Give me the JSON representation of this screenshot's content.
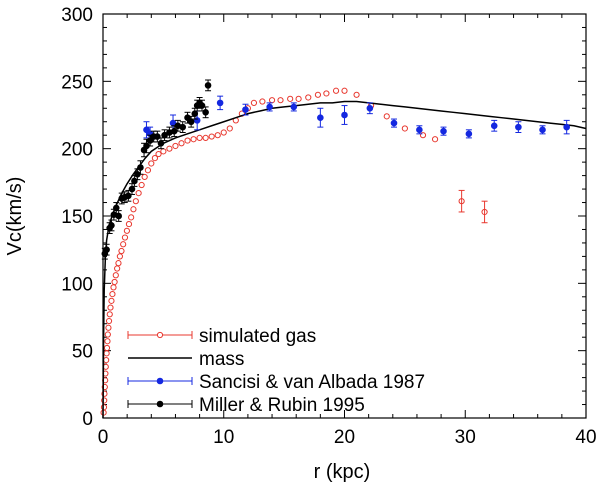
{
  "chart_data": {
    "type": "scatter",
    "xlabel": "r (kpc)",
    "ylabel": "Vc(km/s)",
    "xlim": [
      0,
      40
    ],
    "ylim": [
      0,
      300
    ],
    "xticks": [
      0,
      10,
      20,
      30,
      40
    ],
    "yticks": [
      0,
      50,
      100,
      150,
      200,
      250,
      300
    ],
    "grid": false,
    "legend_position": "bottom-left",
    "colors": {
      "simulated_gas": "#e8382f",
      "mass": "#000000",
      "sancisi": "#1428e0",
      "miller": "#000000"
    },
    "series": [
      {
        "name": "simulated gas",
        "style": "open-circle-errorbar",
        "points": [
          {
            "x": 0.05,
            "y": 4
          },
          {
            "x": 0.08,
            "y": 8
          },
          {
            "x": 0.1,
            "y": 13
          },
          {
            "x": 0.12,
            "y": 18
          },
          {
            "x": 0.15,
            "y": 23
          },
          {
            "x": 0.18,
            "y": 28
          },
          {
            "x": 0.2,
            "y": 33
          },
          {
            "x": 0.23,
            "y": 38
          },
          {
            "x": 0.26,
            "y": 43
          },
          {
            "x": 0.3,
            "y": 48
          },
          {
            "x": 0.33,
            "y": 52
          },
          {
            "x": 0.37,
            "y": 57
          },
          {
            "x": 0.4,
            "y": 62
          },
          {
            "x": 0.45,
            "y": 67
          },
          {
            "x": 0.5,
            "y": 72
          },
          {
            "x": 0.56,
            "y": 77
          },
          {
            "x": 0.62,
            "y": 82
          },
          {
            "x": 0.7,
            "y": 87
          },
          {
            "x": 0.78,
            "y": 92
          },
          {
            "x": 0.87,
            "y": 97
          },
          {
            "x": 0.96,
            "y": 101
          },
          {
            "x": 1.06,
            "y": 106
          },
          {
            "x": 1.17,
            "y": 111
          },
          {
            "x": 1.28,
            "y": 115
          },
          {
            "x": 1.4,
            "y": 120
          },
          {
            "x": 1.53,
            "y": 124
          },
          {
            "x": 1.67,
            "y": 129
          },
          {
            "x": 1.82,
            "y": 134
          },
          {
            "x": 1.98,
            "y": 139
          },
          {
            "x": 2.15,
            "y": 144
          },
          {
            "x": 2.33,
            "y": 149
          },
          {
            "x": 2.52,
            "y": 155
          },
          {
            "x": 2.72,
            "y": 161
          },
          {
            "x": 2.95,
            "y": 167
          },
          {
            "x": 3.2,
            "y": 173
          },
          {
            "x": 3.45,
            "y": 179
          },
          {
            "x": 3.72,
            "y": 184
          },
          {
            "x": 4.0,
            "y": 189
          },
          {
            "x": 4.3,
            "y": 193
          },
          {
            "x": 4.6,
            "y": 196
          },
          {
            "x": 5.0,
            "y": 198
          },
          {
            "x": 5.5,
            "y": 200
          },
          {
            "x": 6.0,
            "y": 202
          },
          {
            "x": 6.5,
            "y": 204
          },
          {
            "x": 7.0,
            "y": 206
          },
          {
            "x": 7.5,
            "y": 207
          },
          {
            "x": 8.0,
            "y": 208
          },
          {
            "x": 8.5,
            "y": 208
          },
          {
            "x": 9.0,
            "y": 209
          },
          {
            "x": 9.5,
            "y": 210
          },
          {
            "x": 10.0,
            "y": 212
          },
          {
            "x": 10.5,
            "y": 215
          },
          {
            "x": 11.0,
            "y": 221
          },
          {
            "x": 11.5,
            "y": 226
          },
          {
            "x": 12.0,
            "y": 230
          },
          {
            "x": 12.5,
            "y": 234
          },
          {
            "x": 13.2,
            "y": 235
          },
          {
            "x": 14.0,
            "y": 236
          },
          {
            "x": 14.7,
            "y": 236
          },
          {
            "x": 15.5,
            "y": 237
          },
          {
            "x": 16.2,
            "y": 237
          },
          {
            "x": 17.0,
            "y": 238
          },
          {
            "x": 17.8,
            "y": 240
          },
          {
            "x": 18.5,
            "y": 241
          },
          {
            "x": 19.3,
            "y": 243
          },
          {
            "x": 20.0,
            "y": 243
          },
          {
            "x": 21.0,
            "y": 240
          },
          {
            "x": 22.2,
            "y": 232
          },
          {
            "x": 23.5,
            "y": 224
          },
          {
            "x": 25.0,
            "y": 215
          },
          {
            "x": 26.5,
            "y": 210
          },
          {
            "x": 27.5,
            "y": 207
          },
          {
            "x": 29.7,
            "y": 161,
            "err": 8
          },
          {
            "x": 31.6,
            "y": 153,
            "err": 8
          }
        ]
      },
      {
        "name": "mass",
        "style": "line",
        "x": [
          0,
          0.05,
          0.1,
          0.2,
          0.3,
          0.5,
          0.75,
          1,
          1.5,
          2,
          2.5,
          3,
          3.5,
          4,
          5,
          6,
          7,
          8,
          9,
          10,
          11,
          12,
          13,
          14,
          15,
          16,
          17,
          18,
          19,
          20,
          21,
          22,
          23,
          24,
          25,
          26,
          27,
          28,
          29,
          30,
          31,
          32,
          33,
          34,
          35,
          36,
          37,
          38,
          39,
          40
        ],
        "y": [
          0,
          60,
          95,
          120,
          132,
          143,
          150,
          156,
          166,
          174,
          181,
          187,
          193,
          198,
          204,
          208,
          211,
          214,
          217,
          220,
          223,
          226,
          228,
          230,
          231,
          232,
          233,
          234,
          234,
          235,
          235,
          234,
          233,
          232,
          231,
          230,
          229,
          228,
          227,
          226,
          225,
          224,
          223,
          222,
          221,
          220,
          219,
          218,
          217,
          215
        ]
      },
      {
        "name": "Sancisi & van Albada 1987",
        "style": "filled-circle-errorbar",
        "points": [
          {
            "x": 3.6,
            "y": 214,
            "err": 6
          },
          {
            "x": 3.9,
            "y": 211,
            "err": 5
          },
          {
            "x": 5.8,
            "y": 219,
            "err": 6
          },
          {
            "x": 7.8,
            "y": 221,
            "err": 7
          },
          {
            "x": 9.7,
            "y": 234,
            "err": 5
          },
          {
            "x": 11.8,
            "y": 229,
            "err": 4
          },
          {
            "x": 13.8,
            "y": 231,
            "err": 3
          },
          {
            "x": 15.8,
            "y": 231,
            "err": 3
          },
          {
            "x": 18.0,
            "y": 223,
            "err": 7
          },
          {
            "x": 20.0,
            "y": 225,
            "err": 7
          },
          {
            "x": 22.1,
            "y": 230,
            "err": 4
          },
          {
            "x": 24.1,
            "y": 219,
            "err": 3
          },
          {
            "x": 26.2,
            "y": 214,
            "err": 3
          },
          {
            "x": 28.2,
            "y": 213,
            "err": 3
          },
          {
            "x": 30.3,
            "y": 211,
            "err": 3
          },
          {
            "x": 32.4,
            "y": 217,
            "err": 4
          },
          {
            "x": 34.4,
            "y": 216,
            "err": 4
          },
          {
            "x": 36.4,
            "y": 214,
            "err": 3
          },
          {
            "x": 38.4,
            "y": 216,
            "err": 5
          }
        ]
      },
      {
        "name": "Miller & Rubin 1995",
        "style": "filled-circle-errorbar",
        "points": [
          {
            "x": 0.15,
            "y": 122,
            "err": 4
          },
          {
            "x": 0.3,
            "y": 125,
            "err": 4
          },
          {
            "x": 0.55,
            "y": 141,
            "err": 4
          },
          {
            "x": 0.7,
            "y": 143,
            "err": 4
          },
          {
            "x": 0.9,
            "y": 151,
            "err": 4
          },
          {
            "x": 1.1,
            "y": 156,
            "err": 4
          },
          {
            "x": 1.3,
            "y": 150,
            "err": 4
          },
          {
            "x": 1.55,
            "y": 163,
            "err": 4
          },
          {
            "x": 1.8,
            "y": 164,
            "err": 4
          },
          {
            "x": 2.1,
            "y": 165,
            "err": 4
          },
          {
            "x": 2.4,
            "y": 170,
            "err": 4
          },
          {
            "x": 2.6,
            "y": 176,
            "err": 4
          },
          {
            "x": 2.85,
            "y": 181,
            "err": 4
          },
          {
            "x": 3.1,
            "y": 186,
            "err": 5
          },
          {
            "x": 3.4,
            "y": 199,
            "err": 5
          },
          {
            "x": 3.6,
            "y": 202,
            "err": 5
          },
          {
            "x": 3.9,
            "y": 206,
            "err": 4
          },
          {
            "x": 4.2,
            "y": 209,
            "err": 4
          },
          {
            "x": 4.5,
            "y": 209,
            "err": 4
          },
          {
            "x": 4.8,
            "y": 204,
            "err": 4
          },
          {
            "x": 5.1,
            "y": 210,
            "err": 4
          },
          {
            "x": 5.5,
            "y": 212,
            "err": 4
          },
          {
            "x": 5.9,
            "y": 213,
            "err": 4
          },
          {
            "x": 6.2,
            "y": 217,
            "err": 4
          },
          {
            "x": 6.6,
            "y": 216,
            "err": 4
          },
          {
            "x": 7.0,
            "y": 223,
            "err": 4
          },
          {
            "x": 7.3,
            "y": 220,
            "err": 4
          },
          {
            "x": 7.6,
            "y": 226,
            "err": 4
          },
          {
            "x": 7.8,
            "y": 232,
            "err": 4
          },
          {
            "x": 8.0,
            "y": 234,
            "err": 4
          },
          {
            "x": 8.2,
            "y": 232,
            "err": 4
          },
          {
            "x": 8.5,
            "y": 227,
            "err": 4
          },
          {
            "x": 8.7,
            "y": 247,
            "err": 4
          }
        ]
      }
    ],
    "legend": [
      {
        "label": "simulated gas",
        "series": "simulated gas"
      },
      {
        "label": "mass",
        "series": "mass"
      },
      {
        "label": "Sancisi & van Albada 1987",
        "series": "Sancisi & van Albada 1987"
      },
      {
        "label": "Miller & Rubin 1995",
        "series": "Miller & Rubin 1995"
      }
    ]
  }
}
